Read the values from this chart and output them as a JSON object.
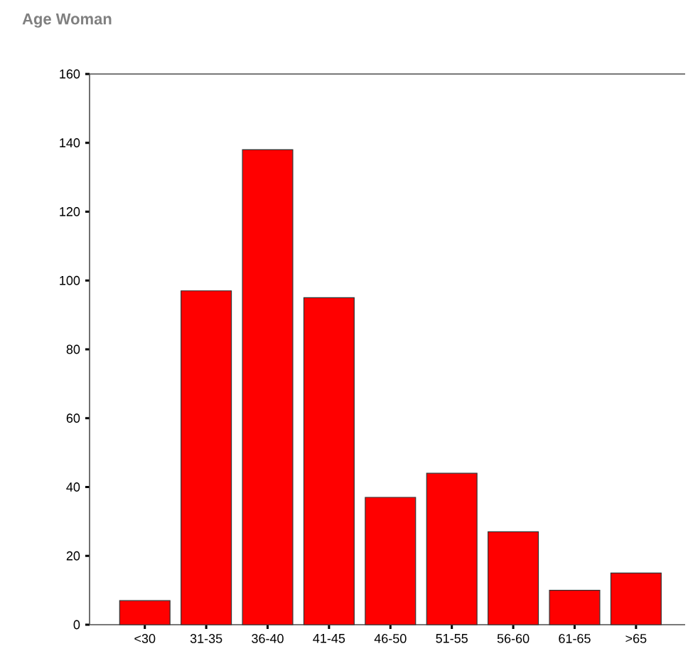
{
  "chart_data": {
    "type": "bar",
    "title": "Age Woman",
    "categories": [
      "<30",
      "31-35",
      "36-40",
      "41-45",
      "46-50",
      "51-55",
      "56-60",
      "61-65",
      ">65"
    ],
    "values": [
      7,
      97,
      138,
      95,
      37,
      44,
      27,
      10,
      15
    ],
    "color": "#ff0000",
    "ylim": [
      0,
      160
    ],
    "yticks": [
      0,
      20,
      40,
      60,
      80,
      100,
      120,
      140,
      160
    ]
  }
}
